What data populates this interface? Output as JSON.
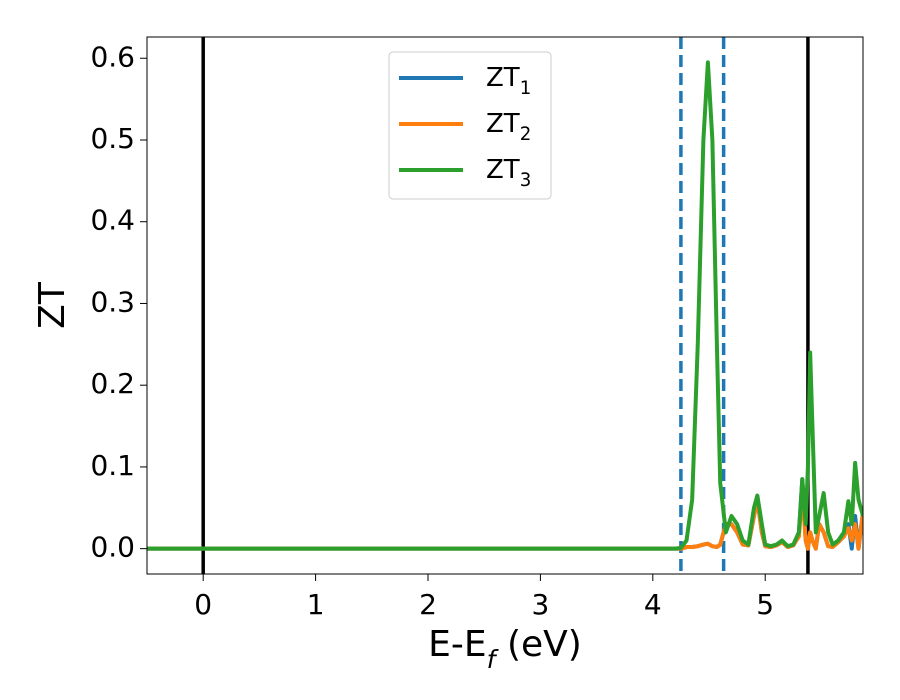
{
  "chart_data": {
    "type": "line",
    "xlabel": "E-E$_f$ (eV)",
    "ylabel": "ZT",
    "x": [
      -0.5,
      4.2,
      4.25,
      4.3,
      4.35,
      4.4,
      4.45,
      4.49,
      4.53,
      4.57,
      4.6,
      4.65,
      4.7,
      4.75,
      4.8,
      4.85,
      4.9,
      4.93,
      4.97,
      5.0,
      5.05,
      5.1,
      5.15,
      5.2,
      5.25,
      5.3,
      5.33,
      5.36,
      5.38,
      5.4,
      5.42,
      5.45,
      5.48,
      5.52,
      5.56,
      5.6,
      5.65,
      5.7,
      5.74,
      5.77,
      5.8,
      5.83,
      5.87
    ],
    "series": [
      {
        "name": "ZT$_1$",
        "color": "#1f77b4",
        "values": [
          0,
          0,
          0,
          0.002,
          0.002,
          0.003,
          0.005,
          0.006,
          0.003,
          0.002,
          0.005,
          0.03,
          0.03,
          0.02,
          0.005,
          0.004,
          0.04,
          0.06,
          0.02,
          0.003,
          0.002,
          0.004,
          0.008,
          0.002,
          0.004,
          0.02,
          0.085,
          0.01,
          0,
          0.02,
          0.01,
          0,
          0.03,
          0.02,
          0.003,
          0.002,
          0.008,
          0.015,
          0.03,
          0,
          0.04,
          0,
          0.045
        ]
      },
      {
        "name": "ZT$_2$",
        "color": "#ff7f0e",
        "values": [
          0,
          0,
          0,
          0.002,
          0.002,
          0.003,
          0.005,
          0.006,
          0.003,
          0.002,
          0.005,
          0.03,
          0.03,
          0.02,
          0.005,
          0.004,
          0.04,
          0.06,
          0.02,
          0.003,
          0.002,
          0.004,
          0.008,
          0.002,
          0.004,
          0.015,
          0.07,
          0.01,
          0,
          0.02,
          0.01,
          0,
          0.03,
          0.02,
          0.003,
          0.002,
          0.008,
          0.015,
          0.025,
          0.01,
          0.03,
          0,
          0.045
        ]
      },
      {
        "name": "ZT$_3$",
        "color": "#2ca02c",
        "values": [
          0,
          0,
          0.001,
          0.01,
          0.06,
          0.25,
          0.5,
          0.595,
          0.5,
          0.25,
          0.08,
          0.02,
          0.04,
          0.03,
          0.01,
          0.005,
          0.05,
          0.065,
          0.03,
          0.005,
          0.003,
          0.005,
          0.01,
          0.003,
          0.005,
          0.02,
          0.085,
          0.03,
          0.1,
          0.24,
          0.15,
          0.02,
          0.04,
          0.068,
          0.02,
          0.005,
          0.01,
          0.02,
          0.058,
          0.03,
          0.105,
          0.06,
          0.04
        ]
      }
    ],
    "vlines": [
      {
        "x": 0,
        "color": "#000000",
        "style": "solid"
      },
      {
        "x": 5.38,
        "color": "#000000",
        "style": "solid"
      },
      {
        "x": 4.25,
        "color": "#1f77b4",
        "style": "dashed"
      },
      {
        "x": 4.63,
        "color": "#1f77b4",
        "style": "dashed"
      }
    ],
    "xlim": [
      -0.5,
      5.87
    ],
    "ylim": [
      -0.031,
      0.626
    ],
    "xticks": [
      0,
      1,
      2,
      3,
      4,
      5
    ],
    "yticks": [
      {
        "value": 0,
        "label": "0.0"
      },
      0.1,
      0.2,
      0.3,
      0.4,
      0.5,
      0.6
    ],
    "legend": "upper center",
    "grid": false
  }
}
